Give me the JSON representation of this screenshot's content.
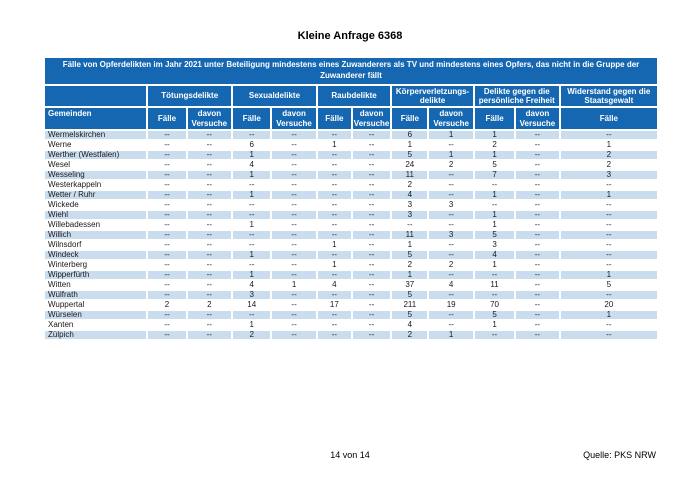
{
  "page": {
    "title": "Kleine Anfrage 6368"
  },
  "table": {
    "title": "Fälle von Opferdelikten im Jahr 2021 unter Beteiligung mindestens eines Zuwanderers als TV und mindestens eines Opfers, das nicht in die Gruppe der Zuwanderer fällt",
    "first_col_header": "Gemeinden",
    "groups": [
      {
        "label": "Tötungsdelikte",
        "cols": 2
      },
      {
        "label": "Sexualdelikte",
        "cols": 2
      },
      {
        "label": "Raubdelikte",
        "cols": 2
      },
      {
        "label": "Körperverletzungs-delikte",
        "cols": 2
      },
      {
        "label": "Delikte gegen die persönliche Freiheit",
        "cols": 2
      },
      {
        "label": "Widerstand gegen die Staatsgewalt",
        "cols": 1
      }
    ],
    "sub_headers": [
      "Fälle",
      "davon Versuche",
      "Fälle",
      "davon Versuche",
      "Fälle",
      "davon Versuche",
      "Fälle",
      "davon Versuche",
      "Fälle",
      "davon Versuche",
      "Fälle"
    ],
    "rows": [
      {
        "name": "Wermelskirchen",
        "values": [
          "--",
          "--",
          "--",
          "--",
          "--",
          "--",
          "6",
          "1",
          "1",
          "--",
          "--"
        ]
      },
      {
        "name": "Werne",
        "values": [
          "--",
          "--",
          "6",
          "--",
          "1",
          "--",
          "1",
          "--",
          "2",
          "--",
          "1"
        ]
      },
      {
        "name": "Werther (Westfalen)",
        "values": [
          "--",
          "--",
          "1",
          "--",
          "--",
          "--",
          "5",
          "1",
          "1",
          "--",
          "2"
        ]
      },
      {
        "name": "Wesel",
        "values": [
          "--",
          "--",
          "4",
          "--",
          "--",
          "--",
          "24",
          "2",
          "5",
          "--",
          "2"
        ]
      },
      {
        "name": "Wesseling",
        "values": [
          "--",
          "--",
          "1",
          "--",
          "--",
          "--",
          "11",
          "--",
          "7",
          "--",
          "3"
        ]
      },
      {
        "name": "Westerkappeln",
        "values": [
          "--",
          "--",
          "--",
          "--",
          "--",
          "--",
          "2",
          "--",
          "--",
          "--",
          "--"
        ]
      },
      {
        "name": "Wetter / Ruhr",
        "values": [
          "--",
          "--",
          "1",
          "--",
          "--",
          "--",
          "4",
          "--",
          "1",
          "--",
          "1"
        ]
      },
      {
        "name": "Wickede",
        "values": [
          "--",
          "--",
          "--",
          "--",
          "--",
          "--",
          "3",
          "3",
          "--",
          "--",
          "--"
        ]
      },
      {
        "name": "Wiehl",
        "values": [
          "--",
          "--",
          "--",
          "--",
          "--",
          "--",
          "3",
          "--",
          "1",
          "--",
          "--"
        ]
      },
      {
        "name": "Willebadessen",
        "values": [
          "--",
          "--",
          "1",
          "--",
          "--",
          "--",
          "--",
          "--",
          "1",
          "--",
          "--"
        ]
      },
      {
        "name": "Willich",
        "values": [
          "--",
          "--",
          "--",
          "--",
          "--",
          "--",
          "11",
          "3",
          "5",
          "--",
          "--"
        ]
      },
      {
        "name": "Wilnsdorf",
        "values": [
          "--",
          "--",
          "--",
          "--",
          "1",
          "--",
          "1",
          "--",
          "3",
          "--",
          "--"
        ]
      },
      {
        "name": "Windeck",
        "values": [
          "--",
          "--",
          "1",
          "--",
          "--",
          "--",
          "5",
          "--",
          "4",
          "--",
          "--"
        ]
      },
      {
        "name": "Winterberg",
        "values": [
          "--",
          "--",
          "--",
          "--",
          "1",
          "--",
          "2",
          "2",
          "1",
          "--",
          "--"
        ]
      },
      {
        "name": "Wipperfürth",
        "values": [
          "--",
          "--",
          "1",
          "--",
          "--",
          "--",
          "1",
          "--",
          "--",
          "--",
          "1"
        ]
      },
      {
        "name": "Witten",
        "values": [
          "--",
          "--",
          "4",
          "1",
          "4",
          "--",
          "37",
          "4",
          "11",
          "--",
          "5"
        ]
      },
      {
        "name": "Wülfrath",
        "values": [
          "--",
          "--",
          "3",
          "--",
          "--",
          "--",
          "5",
          "--",
          "--",
          "--",
          "--"
        ]
      },
      {
        "name": "Wuppertal",
        "values": [
          "2",
          "2",
          "14",
          "--",
          "17",
          "--",
          "211",
          "19",
          "70",
          "--",
          "20"
        ]
      },
      {
        "name": "Würselen",
        "values": [
          "--",
          "--",
          "--",
          "--",
          "--",
          "--",
          "5",
          "--",
          "5",
          "--",
          "1"
        ]
      },
      {
        "name": "Xanten",
        "values": [
          "--",
          "--",
          "1",
          "--",
          "--",
          "--",
          "4",
          "--",
          "1",
          "--",
          "--"
        ]
      },
      {
        "name": "Zülpich",
        "values": [
          "--",
          "--",
          "2",
          "--",
          "--",
          "--",
          "2",
          "1",
          "--",
          "--",
          "--"
        ]
      }
    ]
  },
  "footer": {
    "page_info": "14 von 14",
    "source": "Quelle: PKS NRW"
  },
  "colors": {
    "header_blue": "#1667b1",
    "row_alt_blue": "#c9ddef"
  }
}
